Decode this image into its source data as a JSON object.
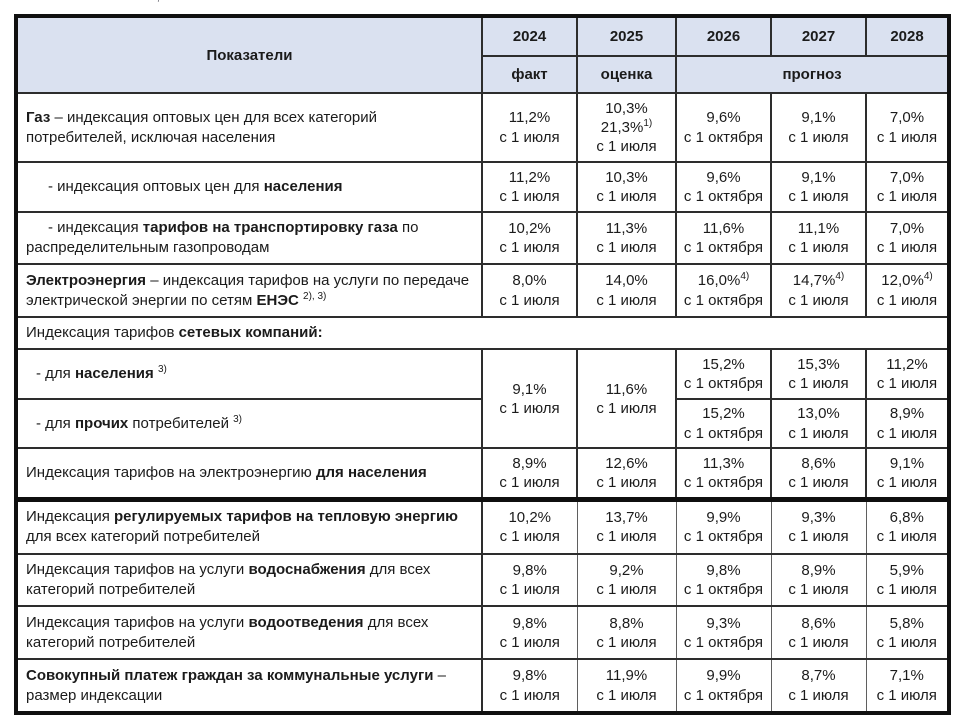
{
  "page": {
    "top_artifact": "ʼ"
  },
  "table": {
    "header": {
      "indicator_label": "Показатели",
      "years": [
        "2024",
        "2025",
        "2026",
        "2027",
        "2028"
      ],
      "subheaders": [
        {
          "label": "факт"
        },
        {
          "label": "оценка"
        },
        {
          "label": "прогноз"
        }
      ]
    },
    "rows": [
      {
        "label": [
          {
            "t": "Газ",
            "b": true
          },
          {
            "t": " – индексация оптовых цен для всех категорий потребителей, исключая населения"
          }
        ],
        "cells": [
          {
            "lines": [
              {
                "t": "11,2%"
              },
              {
                "t": "с 1 июля"
              }
            ]
          },
          {
            "lines": [
              {
                "t": "10,3%"
              },
              {
                "t": "21,3%",
                "sup": "1)"
              },
              {
                "t": "с 1 июля"
              }
            ]
          },
          {
            "lines": [
              {
                "t": "9,6%"
              },
              {
                "t": "с 1 октября"
              }
            ]
          },
          {
            "lines": [
              {
                "t": "9,1%"
              },
              {
                "t": "с 1 июля"
              }
            ]
          },
          {
            "lines": [
              {
                "t": "7,0%"
              },
              {
                "t": "с 1 июля"
              }
            ]
          }
        ]
      },
      {
        "indent": "dash",
        "label": [
          {
            "t": "-  индексация оптовых цен для "
          },
          {
            "t": "населения",
            "b": true
          }
        ],
        "cells": [
          {
            "lines": [
              {
                "t": "11,2%"
              },
              {
                "t": "с 1 июля"
              }
            ]
          },
          {
            "lines": [
              {
                "t": "10,3%"
              },
              {
                "t": "с 1 июля"
              }
            ]
          },
          {
            "lines": [
              {
                "t": "9,6%"
              },
              {
                "t": "с 1 октября"
              }
            ]
          },
          {
            "lines": [
              {
                "t": "9,1%"
              },
              {
                "t": "с 1 июля"
              }
            ]
          },
          {
            "lines": [
              {
                "t": "7,0%"
              },
              {
                "t": "с 1 июля"
              }
            ]
          }
        ]
      },
      {
        "indent": "dash",
        "label": [
          {
            "t": "-  индексация "
          },
          {
            "t": "тарифов на транспортировку газа",
            "b": true
          },
          {
            "t": " по распределительным газопроводам"
          }
        ],
        "cells": [
          {
            "lines": [
              {
                "t": "10,2%"
              },
              {
                "t": "с 1 июля"
              }
            ]
          },
          {
            "lines": [
              {
                "t": "11,3%"
              },
              {
                "t": "с 1 июля"
              }
            ]
          },
          {
            "lines": [
              {
                "t": "11,6%"
              },
              {
                "t": "с 1 октября"
              }
            ]
          },
          {
            "lines": [
              {
                "t": "11,1%"
              },
              {
                "t": "с 1 июля"
              }
            ]
          },
          {
            "lines": [
              {
                "t": "7,0%"
              },
              {
                "t": "с 1 июля"
              }
            ]
          }
        ]
      },
      {
        "label": [
          {
            "t": "Электроэнергия",
            "b": true
          },
          {
            "t": " – индексация тарифов на услуги по передаче электрической энергии по сетям "
          },
          {
            "t": "ЕНЭС",
            "b": true
          },
          {
            "t": " "
          },
          {
            "sup": "2), 3)"
          }
        ],
        "cells": [
          {
            "lines": [
              {
                "t": "8,0%"
              },
              {
                "t": "с 1 июля"
              }
            ]
          },
          {
            "lines": [
              {
                "t": "14,0%"
              },
              {
                "t": "с 1 июля"
              }
            ]
          },
          {
            "lines": [
              {
                "t": "16,0%",
                "sup": "4)"
              },
              {
                "t": "с 1 октября"
              }
            ]
          },
          {
            "lines": [
              {
                "t": "14,7%",
                "sup": "4)"
              },
              {
                "t": "с 1 июля"
              }
            ]
          },
          {
            "lines": [
              {
                "t": "12,0%",
                "sup": "4)"
              },
              {
                "t": "с 1 июля"
              }
            ]
          }
        ]
      },
      {
        "full_width": true,
        "label": [
          {
            "t": "Индексация тарифов "
          },
          {
            "t": "сетевых компаний:",
            "b": true
          }
        ],
        "cells": []
      },
      {
        "indent": "dash-small",
        "label": [
          {
            "t": "- для "
          },
          {
            "t": "населения",
            "b": true
          },
          {
            "t": " "
          },
          {
            "sup": "3)"
          }
        ],
        "cells": [
          {
            "rowspan": 2,
            "lines": [
              {
                "t": "9,1%"
              },
              {
                "t": "с 1 июля"
              }
            ]
          },
          {
            "rowspan": 2,
            "lines": [
              {
                "t": "11,6%"
              },
              {
                "t": "с 1 июля"
              }
            ]
          },
          {
            "lines": [
              {
                "t": "15,2%"
              },
              {
                "t": "с 1 октября"
              }
            ]
          },
          {
            "lines": [
              {
                "t": "15,3%"
              },
              {
                "t": "с 1 июля"
              }
            ]
          },
          {
            "lines": [
              {
                "t": "11,2%"
              },
              {
                "t": "с 1 июля"
              }
            ]
          }
        ]
      },
      {
        "indent": "dash-small",
        "label": [
          {
            "t": "- для "
          },
          {
            "t": "прочих",
            "b": true
          },
          {
            "t": " потребителей "
          },
          {
            "sup": "3)"
          }
        ],
        "cells": [
          {
            "lines": [
              {
                "t": "15,2%"
              },
              {
                "t": "с 1 октября"
              }
            ]
          },
          {
            "lines": [
              {
                "t": "13,0%"
              },
              {
                "t": "с 1 июля"
              }
            ]
          },
          {
            "lines": [
              {
                "t": "8,9%"
              },
              {
                "t": "с 1 июля"
              }
            ]
          }
        ]
      },
      {
        "label": [
          {
            "t": "Индексация тарифов на электроэнергию "
          },
          {
            "t": "для населения",
            "b": true
          }
        ],
        "cells": [
          {
            "lines": [
              {
                "t": "8,9%"
              },
              {
                "t": "с 1 июля"
              }
            ]
          },
          {
            "lines": [
              {
                "t": "12,6%"
              },
              {
                "t": "с 1 июля"
              }
            ]
          },
          {
            "lines": [
              {
                "t": "11,3%"
              },
              {
                "t": "с 1 октября"
              }
            ]
          },
          {
            "lines": [
              {
                "t": "8,6%"
              },
              {
                "t": "с 1 июля"
              }
            ]
          },
          {
            "lines": [
              {
                "t": "9,1%"
              },
              {
                "t": "с 1 июля"
              }
            ]
          }
        ]
      },
      {
        "section_start": true,
        "thin_grid": true,
        "label": [
          {
            "t": "Индексация "
          },
          {
            "t": "регулируемых тарифов на тепловую энергию",
            "b": true
          },
          {
            "t": " для всех категорий потребителей"
          }
        ],
        "cells": [
          {
            "lines": [
              {
                "t": "10,2%"
              },
              {
                "t": "с 1 июля"
              }
            ]
          },
          {
            "lines": [
              {
                "t": "13,7%"
              },
              {
                "t": "с 1 июля"
              }
            ]
          },
          {
            "lines": [
              {
                "t": "9,9%"
              },
              {
                "t": "с 1 октября"
              }
            ]
          },
          {
            "lines": [
              {
                "t": "9,3%"
              },
              {
                "t": "с 1 июля"
              }
            ]
          },
          {
            "lines": [
              {
                "t": "6,8%"
              },
              {
                "t": "с 1 июля"
              }
            ]
          }
        ]
      },
      {
        "thin_grid": true,
        "label": [
          {
            "t": "Индексация тарифов на услуги "
          },
          {
            "t": "водоснабжения",
            "b": true
          },
          {
            "t": " для всех категорий потребителей"
          }
        ],
        "cells": [
          {
            "lines": [
              {
                "t": "9,8%"
              },
              {
                "t": "с 1 июля"
              }
            ]
          },
          {
            "lines": [
              {
                "t": "9,2%"
              },
              {
                "t": "с 1 июля"
              }
            ]
          },
          {
            "lines": [
              {
                "t": "9,8%"
              },
              {
                "t": "с 1 октября"
              }
            ]
          },
          {
            "lines": [
              {
                "t": "8,9%"
              },
              {
                "t": "с 1 июля"
              }
            ]
          },
          {
            "lines": [
              {
                "t": "5,9%"
              },
              {
                "t": "с 1 июля"
              }
            ]
          }
        ]
      },
      {
        "thin_grid": true,
        "label": [
          {
            "t": "Индексация тарифов на услуги "
          },
          {
            "t": "водоотведения",
            "b": true
          },
          {
            "t": " для всех категорий потребителей"
          }
        ],
        "cells": [
          {
            "lines": [
              {
                "t": "9,8%"
              },
              {
                "t": "с 1 июля"
              }
            ]
          },
          {
            "lines": [
              {
                "t": "8,8%"
              },
              {
                "t": "с 1 июля"
              }
            ]
          },
          {
            "lines": [
              {
                "t": "9,3%"
              },
              {
                "t": "с 1 октября"
              }
            ]
          },
          {
            "lines": [
              {
                "t": "8,6%"
              },
              {
                "t": "с 1 июля"
              }
            ]
          },
          {
            "lines": [
              {
                "t": "5,8%"
              },
              {
                "t": "с 1 июля"
              }
            ]
          }
        ]
      },
      {
        "thin_grid": true,
        "label": [
          {
            "t": "Совокупный платеж граждан за коммунальные услуги",
            "b": true
          },
          {
            "t": " – размер индексации"
          }
        ],
        "cells": [
          {
            "lines": [
              {
                "t": "9,8%"
              },
              {
                "t": "с 1 июля"
              }
            ]
          },
          {
            "lines": [
              {
                "t": "11,9%"
              },
              {
                "t": "с 1 июля"
              }
            ]
          },
          {
            "lines": [
              {
                "t": "9,9%"
              },
              {
                "t": "с 1 октября"
              }
            ]
          },
          {
            "lines": [
              {
                "t": "8,7%"
              },
              {
                "t": "с 1 июля"
              }
            ]
          },
          {
            "lines": [
              {
                "t": "7,1%"
              },
              {
                "t": "с 1 июля"
              }
            ]
          }
        ]
      }
    ]
  },
  "colors": {
    "header_bg": "#dae1f0",
    "grid_line": "#2d2d2d",
    "outer_border": "#101010",
    "text": "#1b1b1b"
  }
}
